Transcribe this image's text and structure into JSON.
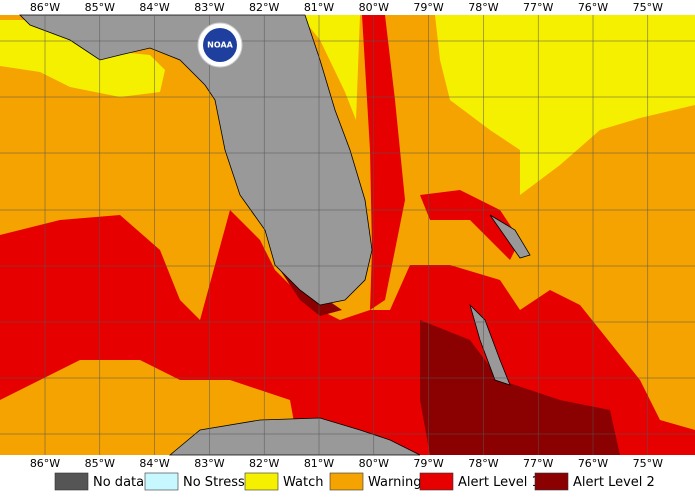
{
  "logo_text": "NOAA",
  "longitudes": [
    "86°W",
    "85°W",
    "84°W",
    "83°W",
    "82°W",
    "81°W",
    "80°W",
    "79°W",
    "78°W",
    "77°W",
    "76°W",
    "75°W"
  ],
  "legend": {
    "items": [
      {
        "label": "No data",
        "color": "#555555"
      },
      {
        "label": "No Stress",
        "color": "#c8f8ff"
      },
      {
        "label": "Watch",
        "color": "#f5f000"
      },
      {
        "label": "Warning",
        "color": "#f5a300"
      },
      {
        "label": "Alert Level 1",
        "color": "#e60000"
      },
      {
        "label": "Alert Level 2",
        "color": "#8b0000"
      }
    ]
  }
}
